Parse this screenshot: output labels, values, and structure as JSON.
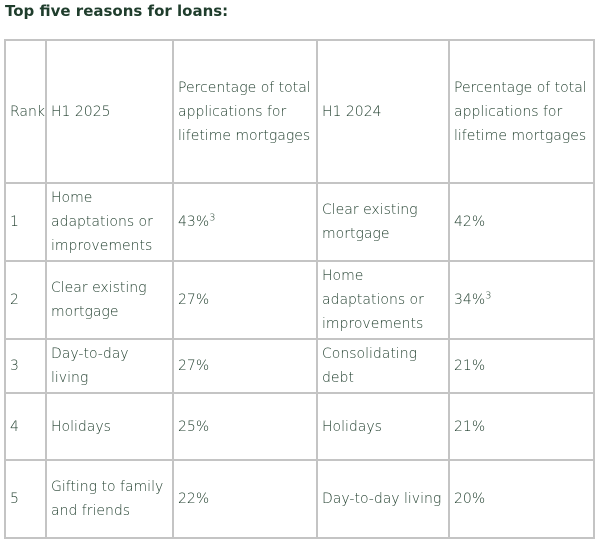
{
  "title": "Top five reasons for loans:",
  "table": {
    "header": [
      "Rank",
      "H1 2025",
      "Percentage of total applications for lifetime mortgages",
      "H1 2024",
      "Percentage of total applications for lifetime mortgages"
    ],
    "rows": [
      [
        "1",
        "Home adaptations or improvements",
        {
          "text": "43%",
          "sup": "3"
        },
        "Clear existing mortgage",
        "42%"
      ],
      [
        "2",
        "Clear existing mortgage",
        "27%",
        "Home adaptations or improvements",
        {
          "text": "34%",
          "sup": "3"
        }
      ],
      [
        "3",
        "Day-to-day living",
        "27%",
        "Consolidating debt",
        "21%"
      ],
      [
        "4",
        "Holidays",
        "25%",
        "Holidays",
        "21%"
      ],
      [
        "5",
        "Gifting to family and friends",
        "22%",
        "Day-to-day living",
        "20%"
      ]
    ]
  }
}
